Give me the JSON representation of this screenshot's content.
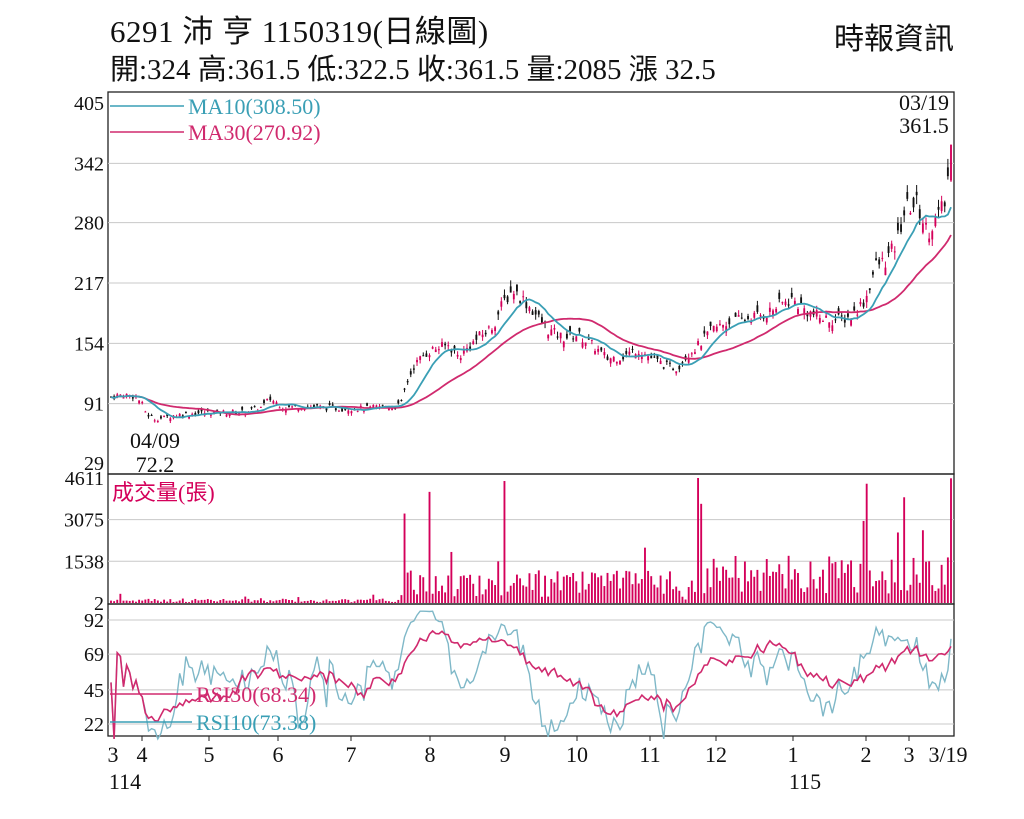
{
  "header": {
    "title": "6291  沛    亨 1150319(日線圖)",
    "source": "時報資訊",
    "ohlc": "開:324 高:361.5 低:322.5 收:361.5 量:2085 漲 32.5"
  },
  "chart_data": {
    "type": "candlestick",
    "stock_code": "6291",
    "stock_name": "沛亨",
    "date": "1150319",
    "price_panel": {
      "y_ticks": [
        405,
        342,
        280,
        217,
        154,
        91,
        29
      ],
      "ylim": [
        29,
        405
      ],
      "legend": [
        {
          "label": "MA10(308.50)",
          "color": "#3a9fb5"
        },
        {
          "label": "MA30(270.92)",
          "color": "#d02a6e"
        }
      ],
      "annotations": [
        {
          "date": "03/19",
          "value": "361.5",
          "position": "top-right"
        },
        {
          "date": "04/09",
          "value": "72.2",
          "position": "bottom-left"
        }
      ],
      "up_color": "#d4005a",
      "down_color": "#111111",
      "last_close": 361.5,
      "period_low": 72.2
    },
    "volume_panel": {
      "title": "成交量(張)",
      "y_ticks": [
        4611,
        3075,
        1538,
        2
      ],
      "ylim": [
        2,
        4611
      ],
      "color": "#d4005a"
    },
    "rsi_panel": {
      "y_ticks": [
        92,
        69,
        45,
        22
      ],
      "ylim": [
        10,
        100
      ],
      "legend": [
        {
          "label": "RSI30(68.34)",
          "color": "#d02a6e"
        },
        {
          "label": "RSI10(73.38)",
          "color": "#3a9fb5"
        }
      ]
    },
    "x_axis": {
      "month_labels": [
        "3",
        "4",
        "5",
        "6",
        "7",
        "8",
        "9",
        "10",
        "11",
        "12",
        "1",
        "2",
        "3",
        "3/19"
      ],
      "year_labels": [
        "114",
        "115"
      ]
    },
    "series": [
      {
        "name": "MA10",
        "value": 308.5
      },
      {
        "name": "MA30",
        "value": 270.92
      },
      {
        "name": "RSI30",
        "value": 68.34
      },
      {
        "name": "RSI10",
        "value": 73.38
      }
    ]
  }
}
